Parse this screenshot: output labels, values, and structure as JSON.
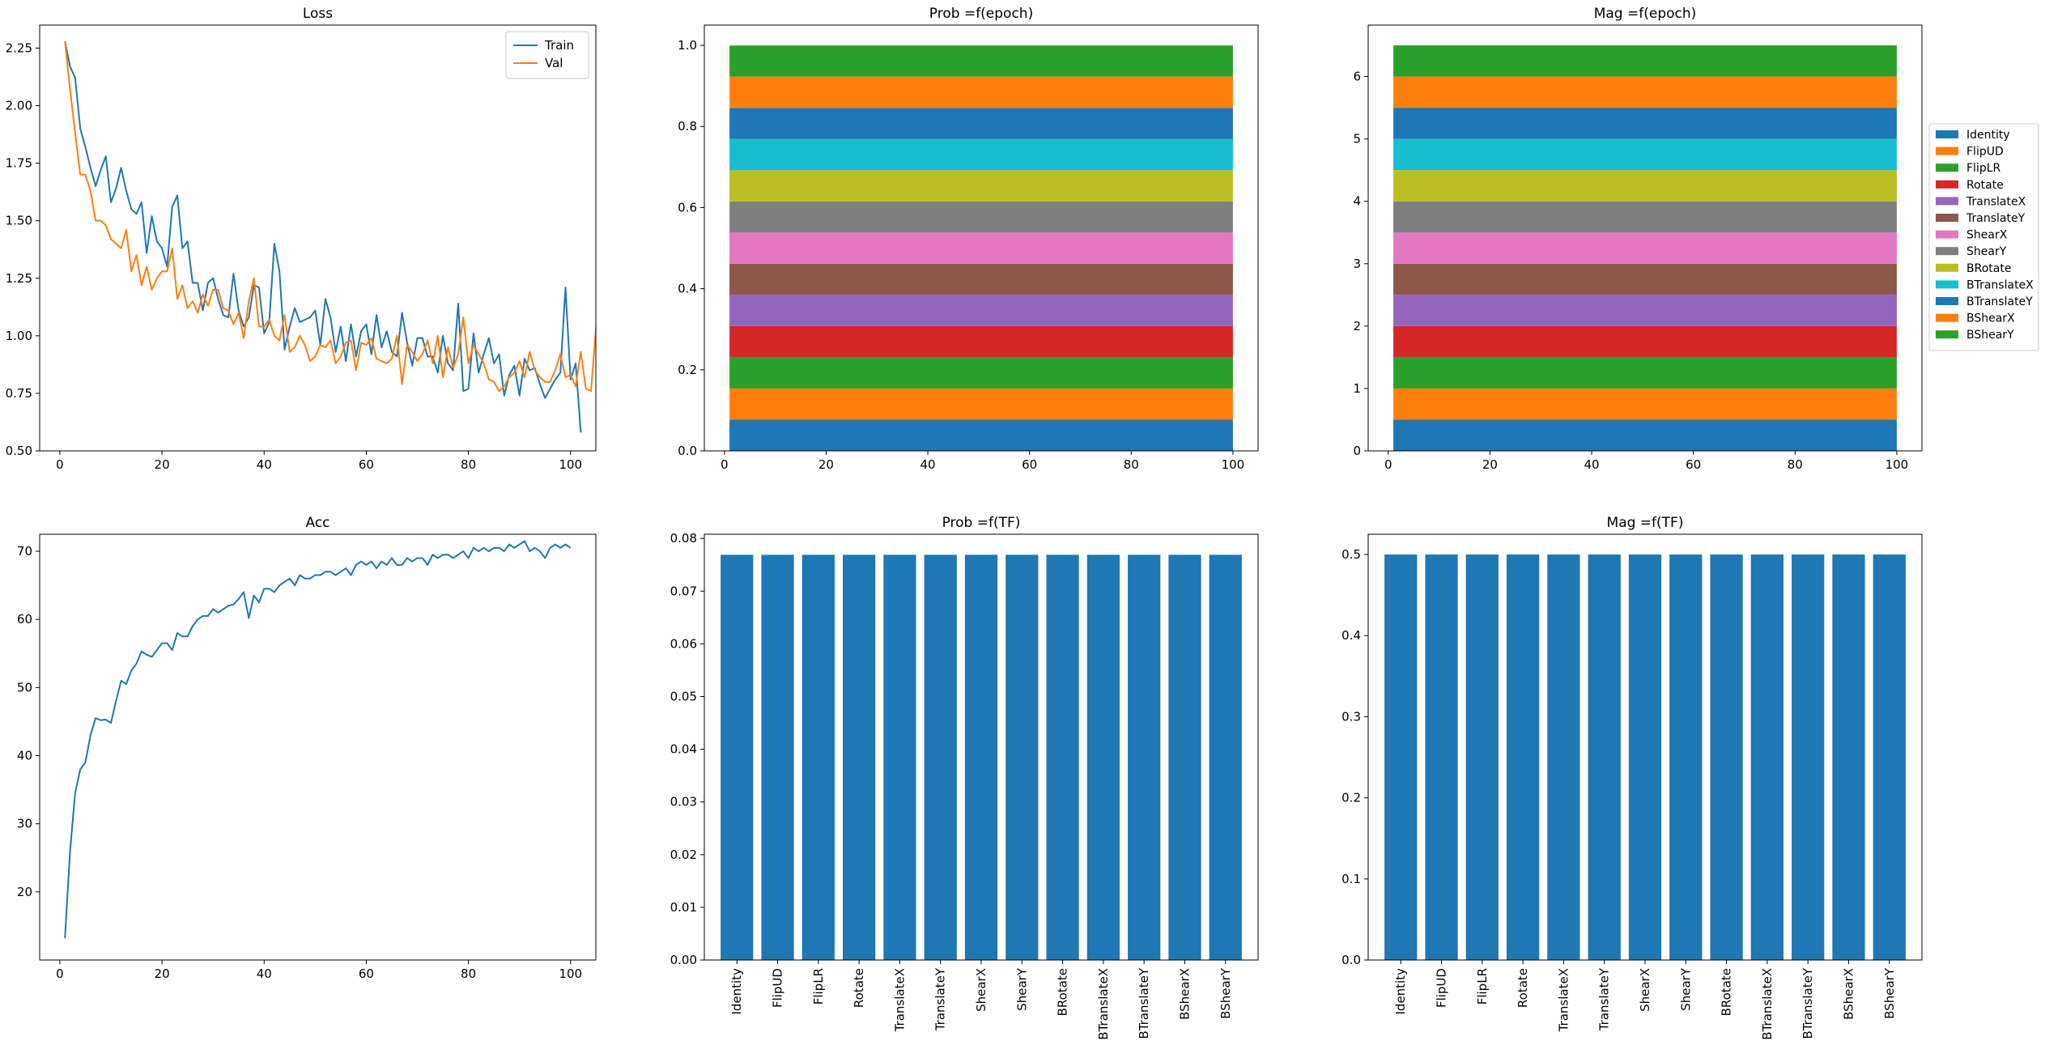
{
  "colors": {
    "blue": "#1f77b4",
    "orange": "#ff7f0e",
    "green": "#2ca02c",
    "red": "#d62728",
    "purple": "#9467bd",
    "brown": "#8c564b",
    "pink": "#e377c2",
    "gray": "#7f7f7f",
    "olive": "#bcbd22",
    "cyan": "#17becf"
  },
  "chart_data": [
    {
      "id": "loss",
      "type": "line",
      "title": "Loss",
      "xlabel": "",
      "ylabel": "",
      "xlim": [
        -3.95,
        104.95
      ],
      "ylim": [
        0.5,
        2.35
      ],
      "xticks": [
        0,
        20,
        40,
        60,
        80,
        100
      ],
      "yticks": [
        0.5,
        0.75,
        1.0,
        1.25,
        1.5,
        1.75,
        2.0,
        2.25
      ],
      "ytick_labels": [
        "0.50",
        "0.75",
        "1.00",
        "1.25",
        "1.50",
        "1.75",
        "2.00",
        "2.25"
      ],
      "grid": false,
      "legend": "upper-right",
      "series": [
        {
          "name": "Train",
          "color": "#1f77b4",
          "x_start": 1,
          "values": [
            2.28,
            2.17,
            2.12,
            1.9,
            1.82,
            1.73,
            1.65,
            1.72,
            1.78,
            1.58,
            1.64,
            1.73,
            1.63,
            1.55,
            1.53,
            1.58,
            1.36,
            1.52,
            1.41,
            1.38,
            1.3,
            1.56,
            1.61,
            1.38,
            1.41,
            1.23,
            1.23,
            1.11,
            1.23,
            1.25,
            1.16,
            1.09,
            1.08,
            1.27,
            1.11,
            1.04,
            1.08,
            1.22,
            1.21,
            1.01,
            1.06,
            1.4,
            1.28,
            0.94,
            1.04,
            1.12,
            1.06,
            1.07,
            1.08,
            1.11,
            0.96,
            1.16,
            1.08,
            0.93,
            1.04,
            0.89,
            1.05,
            0.91,
            1.02,
            1.05,
            0.92,
            1.09,
            0.95,
            1.02,
            0.93,
            0.91,
            1.1,
            0.97,
            0.87,
            0.99,
            0.99,
            0.91,
            0.91,
            0.84,
            1.0,
            0.88,
            0.85,
            1.14,
            0.76,
            0.77,
            1.01,
            0.84,
            0.92,
            0.99,
            0.88,
            0.92,
            0.74,
            0.83,
            0.87,
            0.74,
            0.9,
            0.85,
            0.86,
            0.79,
            0.73,
            0.77,
            0.81,
            0.84,
            1.21,
            0.81,
            0.88,
            0.58
          ]
        },
        {
          "name": "Val",
          "color": "#ff7f0e",
          "x_start": 1,
          "values": [
            2.28,
            2.07,
            1.88,
            1.7,
            1.7,
            1.63,
            1.5,
            1.5,
            1.48,
            1.42,
            1.4,
            1.38,
            1.46,
            1.28,
            1.35,
            1.22,
            1.3,
            1.2,
            1.25,
            1.28,
            1.28,
            1.38,
            1.16,
            1.22,
            1.12,
            1.15,
            1.1,
            1.18,
            1.13,
            1.2,
            1.2,
            1.12,
            1.11,
            1.05,
            1.1,
            0.99,
            1.15,
            1.25,
            1.04,
            1.04,
            1.07,
            1.0,
            0.98,
            1.09,
            0.93,
            0.95,
            1.0,
            0.96,
            0.89,
            0.91,
            0.96,
            0.95,
            0.98,
            0.88,
            0.91,
            0.97,
            0.98,
            0.85,
            0.97,
            0.96,
            0.99,
            0.9,
            0.89,
            0.88,
            0.9,
            1.0,
            0.79,
            0.96,
            0.93,
            0.89,
            0.92,
            0.98,
            0.88,
            1.0,
            0.82,
            0.95,
            0.86,
            0.92,
            1.08,
            0.88,
            0.96,
            0.92,
            0.88,
            0.81,
            0.8,
            0.76,
            0.78,
            0.82,
            0.84,
            0.89,
            0.82,
            0.93,
            0.85,
            0.82,
            0.8,
            0.8,
            0.85,
            0.92,
            0.82,
            0.83,
            0.78,
            0.93,
            0.77,
            0.76,
            1.04
          ]
        }
      ]
    },
    {
      "id": "prob-epoch",
      "type": "area",
      "title": "Prob =f(epoch)",
      "xlabel": "",
      "ylabel": "",
      "xlim": [
        -3.95,
        104.95
      ],
      "ylim": [
        0,
        1.05
      ],
      "xticks": [
        0,
        20,
        40,
        60,
        80,
        100
      ],
      "yticks": [
        0.0,
        0.2,
        0.4,
        0.6,
        0.8,
        1.0
      ],
      "ytick_labels": [
        "0.0",
        "0.2",
        "0.4",
        "0.6",
        "0.8",
        "1.0"
      ],
      "x_range": [
        1,
        100
      ],
      "stack_values": [
        0.0769,
        0.0769,
        0.0769,
        0.0769,
        0.0769,
        0.0769,
        0.0769,
        0.0769,
        0.0769,
        0.0769,
        0.0769,
        0.0769,
        0.0769
      ],
      "grid": false
    },
    {
      "id": "mag-epoch",
      "type": "area",
      "title": "Mag =f(epoch)",
      "xlabel": "",
      "ylabel": "",
      "xlim": [
        -3.95,
        104.95
      ],
      "ylim": [
        0,
        6.825
      ],
      "xticks": [
        0,
        20,
        40,
        60,
        80,
        100
      ],
      "yticks": [
        0,
        1,
        2,
        3,
        4,
        5,
        6
      ],
      "ytick_labels": [
        "0",
        "1",
        "2",
        "3",
        "4",
        "5",
        "6"
      ],
      "x_range": [
        1,
        100
      ],
      "stack_values": [
        0.5,
        0.5,
        0.5,
        0.5,
        0.5,
        0.5,
        0.5,
        0.5,
        0.5,
        0.5,
        0.5,
        0.5,
        0.5
      ],
      "grid": false,
      "legend": "right-outside"
    },
    {
      "id": "acc",
      "type": "line",
      "title": "Acc",
      "xlabel": "",
      "ylabel": "",
      "xlim": [
        -3.95,
        104.95
      ],
      "ylim": [
        10.0,
        72.5
      ],
      "xticks": [
        0,
        20,
        40,
        60,
        80,
        100
      ],
      "yticks": [
        20,
        30,
        40,
        50,
        60,
        70
      ],
      "ytick_labels": [
        "20",
        "30",
        "40",
        "50",
        "60",
        "70"
      ],
      "grid": false,
      "series": [
        {
          "name": "",
          "color": "#1f77b4",
          "x_start": 1,
          "values": [
            13.2,
            26.0,
            34.5,
            38.0,
            39.0,
            43.0,
            45.5,
            45.2,
            45.3,
            44.8,
            48.0,
            51.0,
            50.5,
            52.5,
            53.5,
            55.3,
            54.8,
            54.5,
            55.5,
            56.5,
            56.5,
            55.5,
            58.0,
            57.5,
            57.5,
            59.0,
            60.0,
            60.5,
            60.5,
            61.5,
            61.0,
            61.5,
            62.0,
            62.2,
            63.0,
            64.0,
            60.2,
            63.5,
            62.5,
            64.5,
            64.5,
            64.0,
            65.0,
            65.5,
            66.0,
            65.0,
            66.5,
            66.0,
            66.0,
            66.5,
            66.5,
            67.0,
            67.0,
            66.5,
            67.0,
            67.5,
            66.5,
            68.0,
            68.5,
            68.0,
            68.5,
            67.5,
            68.5,
            68.0,
            69.0,
            68.0,
            68.0,
            69.0,
            68.5,
            69.0,
            69.0,
            68.0,
            69.5,
            69.0,
            69.5,
            69.5,
            69.0,
            69.5,
            70.0,
            69.0,
            70.5,
            70.0,
            70.5,
            70.0,
            70.5,
            70.5,
            70.0,
            71.0,
            70.5,
            71.0,
            71.5,
            70.0,
            70.5,
            70.0,
            69.0,
            70.5,
            71.0,
            70.5,
            71.0,
            70.5
          ]
        }
      ]
    },
    {
      "id": "prob-tf",
      "type": "bar",
      "title": "Prob =f(TF)",
      "xlabel": "",
      "ylabel": "",
      "ylim": [
        0,
        0.0808
      ],
      "yticks": [
        0.0,
        0.01,
        0.02,
        0.03,
        0.04,
        0.05,
        0.06,
        0.07,
        0.08
      ],
      "ytick_labels": [
        "0.00",
        "0.01",
        "0.02",
        "0.03",
        "0.04",
        "0.05",
        "0.06",
        "0.07",
        "0.08"
      ],
      "categories": [
        "Identity",
        "FlipUD",
        "FlipLR",
        "Rotate",
        "TranslateX",
        "TranslateY",
        "ShearX",
        "ShearY",
        "BRotate",
        "BTranslateX",
        "BTranslateY",
        "BShearX",
        "BShearY"
      ],
      "values": [
        0.0769,
        0.0769,
        0.0769,
        0.0769,
        0.0769,
        0.0769,
        0.0769,
        0.0769,
        0.0769,
        0.0769,
        0.0769,
        0.0769,
        0.0769
      ],
      "color": "#1f77b4",
      "grid": false
    },
    {
      "id": "mag-tf",
      "type": "bar",
      "title": "Mag =f(TF)",
      "xlabel": "",
      "ylabel": "",
      "ylim": [
        0,
        0.525
      ],
      "yticks": [
        0.0,
        0.1,
        0.2,
        0.3,
        0.4,
        0.5
      ],
      "ytick_labels": [
        "0.0",
        "0.1",
        "0.2",
        "0.3",
        "0.4",
        "0.5"
      ],
      "categories": [
        "Identity",
        "FlipUD",
        "FlipLR",
        "Rotate",
        "TranslateX",
        "TranslateY",
        "ShearX",
        "ShearY",
        "BRotate",
        "BTranslateX",
        "BTranslateY",
        "BShearX",
        "BShearY"
      ],
      "values": [
        0.5,
        0.5,
        0.5,
        0.5,
        0.5,
        0.5,
        0.5,
        0.5,
        0.5,
        0.5,
        0.5,
        0.5,
        0.5
      ],
      "color": "#1f77b4",
      "grid": false
    }
  ],
  "legend_tf": {
    "entries": [
      {
        "name": "Identity",
        "color": "#1f77b4"
      },
      {
        "name": "FlipUD",
        "color": "#ff7f0e"
      },
      {
        "name": "FlipLR",
        "color": "#2ca02c"
      },
      {
        "name": "Rotate",
        "color": "#d62728"
      },
      {
        "name": "TranslateX",
        "color": "#9467bd"
      },
      {
        "name": "TranslateY",
        "color": "#8c564b"
      },
      {
        "name": "ShearX",
        "color": "#e377c2"
      },
      {
        "name": "ShearY",
        "color": "#7f7f7f"
      },
      {
        "name": "BRotate",
        "color": "#bcbd22"
      },
      {
        "name": "BTranslateX",
        "color": "#17becf"
      },
      {
        "name": "BTranslateY",
        "color": "#1f77b4"
      },
      {
        "name": "BShearX",
        "color": "#ff7f0e"
      },
      {
        "name": "BShearY",
        "color": "#2ca02c"
      }
    ]
  }
}
